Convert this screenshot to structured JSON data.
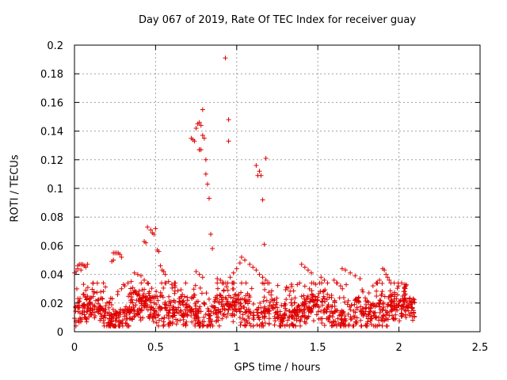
{
  "chart_data": {
    "type": "scatter",
    "title": "Day 067 of 2019, Rate Of TEC Index for receiver guay",
    "xlabel": "GPS time / hours",
    "ylabel": "ROTI / TECUs",
    "xlim": [
      0,
      2.5
    ],
    "ylim": [
      0,
      0.2
    ],
    "xticks": [
      {
        "value": 0,
        "label": "0"
      },
      {
        "value": 0.5,
        "label": "0.5"
      },
      {
        "value": 1,
        "label": "1"
      },
      {
        "value": 1.5,
        "label": "1.5"
      },
      {
        "value": 2,
        "label": "2"
      },
      {
        "value": 2.5,
        "label": "2.5"
      }
    ],
    "yticks": [
      {
        "value": 0,
        "label": "0"
      },
      {
        "value": 0.02,
        "label": "0.02"
      },
      {
        "value": 0.04,
        "label": "0.04"
      },
      {
        "value": 0.06,
        "label": "0.06"
      },
      {
        "value": 0.08,
        "label": "0.08"
      },
      {
        "value": 0.1,
        "label": "0.1"
      },
      {
        "value": 0.12,
        "label": "0.12"
      },
      {
        "value": 0.14,
        "label": "0.14"
      },
      {
        "value": 0.16,
        "label": "0.16"
      },
      {
        "value": 0.18,
        "label": "0.18"
      },
      {
        "value": 0.2,
        "label": "0.2"
      }
    ],
    "grid": true,
    "marker": "+",
    "color": "#e00000",
    "series": [
      {
        "name": "ROTI",
        "x": [
          0.93,
          0.95,
          0.95,
          0.79,
          0.76,
          0.77,
          0.78,
          0.75,
          0.79,
          0.8,
          0.72,
          0.73,
          0.74,
          0.78,
          0.77,
          1.18,
          1.12,
          1.14,
          1.13,
          1.15,
          0.77,
          0.81,
          0.82,
          0.83,
          0.81,
          1.16,
          0.45,
          0.47,
          0.48,
          0.49,
          0.5,
          0.43,
          0.44,
          0.84,
          0.85,
          1.17,
          0.51,
          0.52,
          0.55,
          0.56,
          0.53,
          0.54,
          1.03,
          1.05,
          1.02,
          1.0,
          0.98,
          0.96,
          1.08,
          1.1,
          1.12,
          1.14,
          1.16,
          1.18,
          1.2,
          0.0,
          0.01,
          0.02,
          0.03,
          0.04,
          0.05,
          0.06,
          0.07,
          0.08,
          0.02,
          0.04,
          0.06,
          0.24,
          0.25,
          0.26,
          0.27,
          0.28,
          0.29,
          0.23,
          0.24,
          0.37,
          0.39,
          0.41,
          0.43,
          0.45,
          0.35,
          0.33,
          0.31,
          0.29,
          0.58,
          0.6,
          0.62,
          0.75,
          0.77,
          0.79,
          0.88,
          0.9,
          0.92,
          1.4,
          1.42,
          1.44,
          1.46,
          1.52,
          1.54,
          1.56,
          1.65,
          1.67,
          1.7,
          1.73,
          1.76,
          1.9,
          1.91,
          1.92,
          1.93,
          1.94,
          1.95,
          1.88,
          1.86,
          1.84,
          1.6,
          1.62,
          1.64
        ],
        "y": [
          0.191,
          0.148,
          0.133,
          0.155,
          0.145,
          0.146,
          0.144,
          0.142,
          0.137,
          0.135,
          0.135,
          0.134,
          0.133,
          0.127,
          0.127,
          0.121,
          0.116,
          0.112,
          0.109,
          0.109,
          0.127,
          0.11,
          0.103,
          0.093,
          0.12,
          0.092,
          0.073,
          0.071,
          0.069,
          0.068,
          0.072,
          0.063,
          0.062,
          0.068,
          0.058,
          0.061,
          0.057,
          0.056,
          0.042,
          0.04,
          0.046,
          0.043,
          0.052,
          0.05,
          0.048,
          0.044,
          0.041,
          0.038,
          0.047,
          0.045,
          0.043,
          0.04,
          0.038,
          0.036,
          0.034,
          0.041,
          0.042,
          0.046,
          0.047,
          0.047,
          0.047,
          0.046,
          0.045,
          0.047,
          0.044,
          0.043,
          0.046,
          0.055,
          0.055,
          0.055,
          0.055,
          0.054,
          0.052,
          0.049,
          0.05,
          0.041,
          0.04,
          0.039,
          0.036,
          0.034,
          0.035,
          0.034,
          0.032,
          0.03,
          0.035,
          0.033,
          0.031,
          0.042,
          0.04,
          0.038,
          0.037,
          0.036,
          0.034,
          0.047,
          0.045,
          0.043,
          0.041,
          0.038,
          0.036,
          0.034,
          0.044,
          0.043,
          0.041,
          0.039,
          0.037,
          0.044,
          0.043,
          0.04,
          0.038,
          0.036,
          0.034,
          0.036,
          0.034,
          0.032,
          0.036,
          0.034,
          0.032
        ]
      }
    ],
    "background_band": {
      "x_range": [
        0,
        2.1
      ],
      "y_range": [
        0.005,
        0.03
      ],
      "typical_center": 0.014,
      "description_count": 1400
    }
  }
}
